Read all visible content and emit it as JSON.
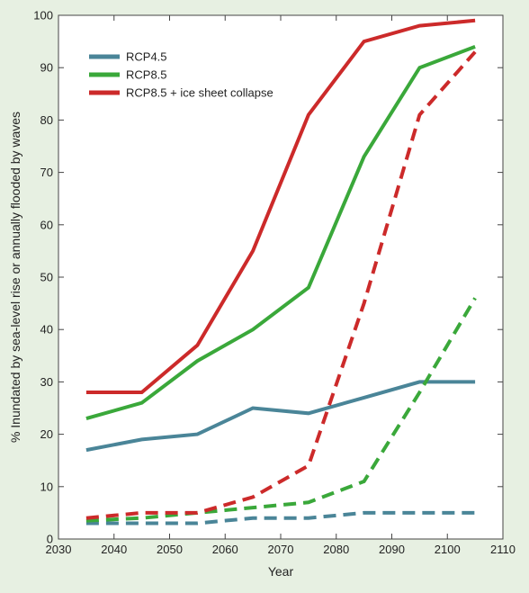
{
  "chart_data": {
    "type": "line",
    "title": "",
    "xlabel": "Year",
    "ylabel": "% Inundated by sea-level rise  or  annually flooded by waves",
    "xlim": [
      2030,
      2110
    ],
    "ylim": [
      0,
      100
    ],
    "xticks": [
      2030,
      2040,
      2050,
      2060,
      2070,
      2080,
      2090,
      2100,
      2110
    ],
    "yticks": [
      0,
      10,
      20,
      30,
      40,
      50,
      60,
      70,
      80,
      90,
      100
    ],
    "grid": false,
    "legend_position": "top-left",
    "legend": [
      {
        "label": "RCP4.5",
        "color": "#4a8598"
      },
      {
        "label": "RCP8.5",
        "color": "#3aa83a"
      },
      {
        "label": "RCP8.5 + ice sheet collapse",
        "color": "#cc2a2a"
      }
    ],
    "x": [
      2035,
      2045,
      2055,
      2065,
      2075,
      2085,
      2095,
      2105
    ],
    "series": [
      {
        "key": "rcp45_wave",
        "color": "#4a8598",
        "dash": false,
        "values": [
          17,
          19,
          20,
          25,
          24,
          27,
          30,
          30
        ]
      },
      {
        "key": "rcp85_wave",
        "color": "#3aa83a",
        "dash": false,
        "values": [
          23,
          26,
          34,
          40,
          48,
          73,
          90,
          94
        ]
      },
      {
        "key": "ice_wave",
        "color": "#cc2a2a",
        "dash": false,
        "values": [
          28,
          28,
          37,
          55,
          81,
          95,
          98,
          99
        ]
      },
      {
        "key": "rcp45_slr",
        "color": "#4a8598",
        "dash": true,
        "values": [
          3,
          3,
          3,
          4,
          4,
          5,
          5,
          5
        ]
      },
      {
        "key": "rcp85_slr",
        "color": "#3aa83a",
        "dash": true,
        "values": [
          3.5,
          4,
          5,
          6,
          7,
          11,
          28,
          46
        ]
      },
      {
        "key": "ice_slr",
        "color": "#cc2a2a",
        "dash": true,
        "values": [
          4,
          5,
          5,
          8,
          14,
          45,
          81,
          93
        ]
      }
    ]
  }
}
